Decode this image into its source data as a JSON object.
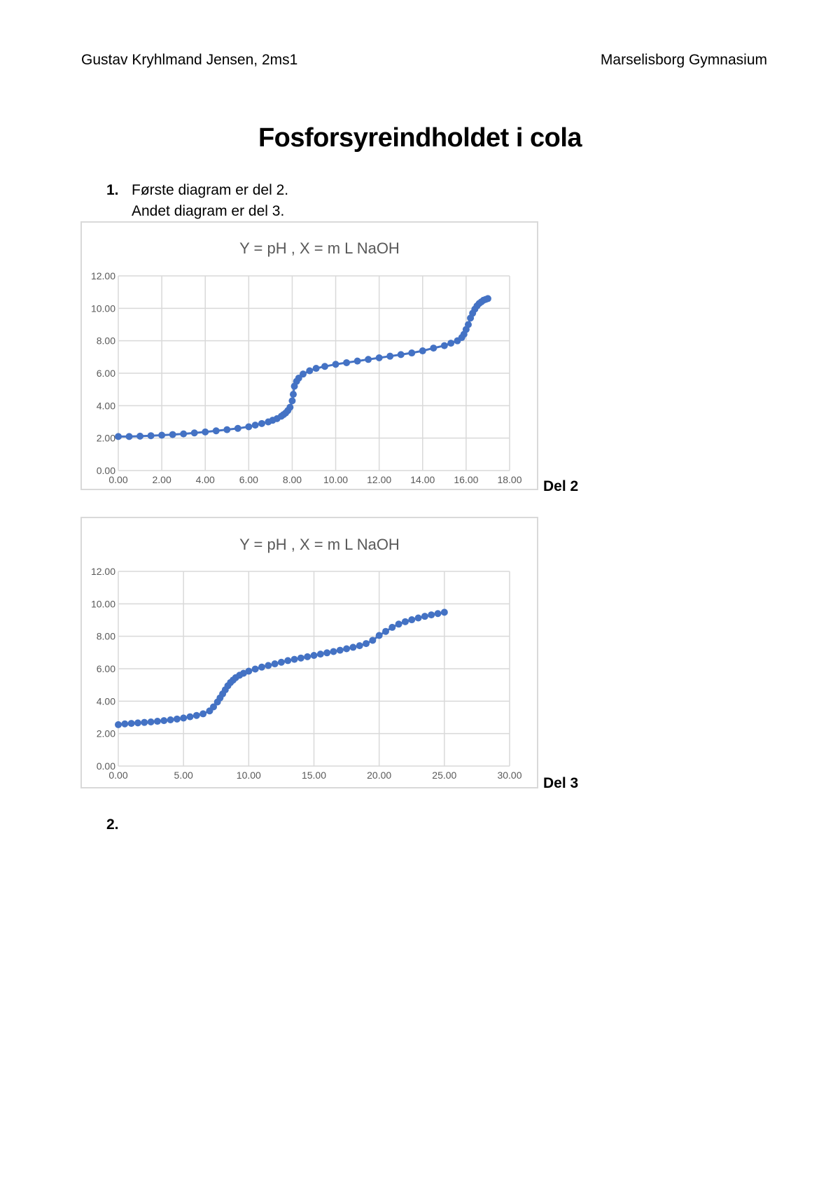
{
  "header": {
    "author": "Gustav Kryhlmand Jensen, 2ms1",
    "school": "Marselisborg Gymnasium"
  },
  "title": "Fosforsyreindholdet i cola",
  "list": {
    "item1_num": "1.",
    "item1_line1": "Første diagram er del 2.",
    "item1_line2": "Andet diagram er del 3.",
    "item2_num": "2."
  },
  "charts_labels": [
    "Del 2",
    "Del 3"
  ],
  "chart_data": [
    {
      "type": "scatter",
      "title": "Y = pH ,   X = m L NaOH",
      "xlim": [
        0,
        18
      ],
      "ylim": [
        0,
        12
      ],
      "xticks": [
        "0.00",
        "2.00",
        "4.00",
        "6.00",
        "8.00",
        "10.00",
        "12.00",
        "14.00",
        "16.00",
        "18.00"
      ],
      "yticks": [
        "0.00",
        "2.00",
        "4.00",
        "6.00",
        "8.00",
        "10.00",
        "12.00"
      ],
      "grid": true,
      "color": "#4472c4",
      "series": [
        {
          "x": [
            0.0,
            0.5,
            1.0,
            1.5,
            2.0,
            2.5,
            3.0,
            3.5,
            4.0,
            4.5,
            5.0,
            5.5,
            6.0,
            6.3,
            6.6,
            6.9,
            7.1,
            7.3,
            7.5,
            7.6,
            7.7,
            7.8,
            7.9,
            8.0,
            8.05,
            8.1,
            8.2,
            8.3,
            8.5,
            8.8,
            9.1,
            9.5,
            10.0,
            10.5,
            11.0,
            11.5,
            12.0,
            12.5,
            13.0,
            13.5,
            14.0,
            14.5,
            15.0,
            15.3,
            15.6,
            15.8,
            15.9,
            16.0,
            16.1,
            16.2,
            16.3,
            16.4,
            16.5,
            16.6,
            16.7,
            16.8,
            16.9,
            17.0
          ],
          "y": [
            2.1,
            2.1,
            2.12,
            2.15,
            2.18,
            2.22,
            2.26,
            2.32,
            2.38,
            2.45,
            2.52,
            2.6,
            2.7,
            2.8,
            2.9,
            3.0,
            3.1,
            3.2,
            3.35,
            3.45,
            3.55,
            3.7,
            3.9,
            4.3,
            4.7,
            5.2,
            5.5,
            5.7,
            5.95,
            6.15,
            6.3,
            6.42,
            6.55,
            6.65,
            6.75,
            6.85,
            6.95,
            7.05,
            7.15,
            7.25,
            7.38,
            7.55,
            7.7,
            7.85,
            8.0,
            8.2,
            8.4,
            8.7,
            9.0,
            9.4,
            9.7,
            9.95,
            10.15,
            10.3,
            10.4,
            10.5,
            10.55,
            10.6
          ]
        }
      ]
    },
    {
      "type": "scatter",
      "title": "Y = pH    ,    X = m L NaOH",
      "xlim": [
        0,
        30
      ],
      "ylim": [
        0,
        12
      ],
      "xticks": [
        "0.00",
        "5.00",
        "10.00",
        "15.00",
        "20.00",
        "25.00",
        "30.00"
      ],
      "yticks": [
        "0.00",
        "2.00",
        "4.00",
        "6.00",
        "8.00",
        "10.00",
        "12.00"
      ],
      "grid": true,
      "color": "#4472c4",
      "series": [
        {
          "x": [
            0.0,
            0.5,
            1.0,
            1.5,
            2.0,
            2.5,
            3.0,
            3.5,
            4.0,
            4.5,
            5.0,
            5.5,
            6.0,
            6.5,
            7.0,
            7.3,
            7.6,
            7.8,
            8.0,
            8.2,
            8.4,
            8.6,
            8.8,
            9.0,
            9.3,
            9.6,
            10.0,
            10.5,
            11.0,
            11.5,
            12.0,
            12.5,
            13.0,
            13.5,
            14.0,
            14.5,
            15.0,
            15.5,
            16.0,
            16.5,
            17.0,
            17.5,
            18.0,
            18.5,
            19.0,
            19.5,
            20.0,
            20.5,
            21.0,
            21.5,
            22.0,
            22.5,
            23.0,
            23.5,
            24.0,
            24.5,
            25.0
          ],
          "y": [
            2.55,
            2.6,
            2.63,
            2.66,
            2.69,
            2.72,
            2.76,
            2.8,
            2.85,
            2.9,
            2.96,
            3.04,
            3.12,
            3.22,
            3.4,
            3.65,
            3.95,
            4.2,
            4.45,
            4.7,
            4.95,
            5.15,
            5.3,
            5.45,
            5.6,
            5.72,
            5.85,
            5.98,
            6.1,
            6.2,
            6.3,
            6.4,
            6.5,
            6.58,
            6.66,
            6.74,
            6.82,
            6.9,
            6.98,
            7.06,
            7.14,
            7.23,
            7.32,
            7.42,
            7.55,
            7.75,
            8.05,
            8.3,
            8.55,
            8.75,
            8.9,
            9.02,
            9.13,
            9.23,
            9.32,
            9.4,
            9.48
          ]
        }
      ]
    }
  ]
}
